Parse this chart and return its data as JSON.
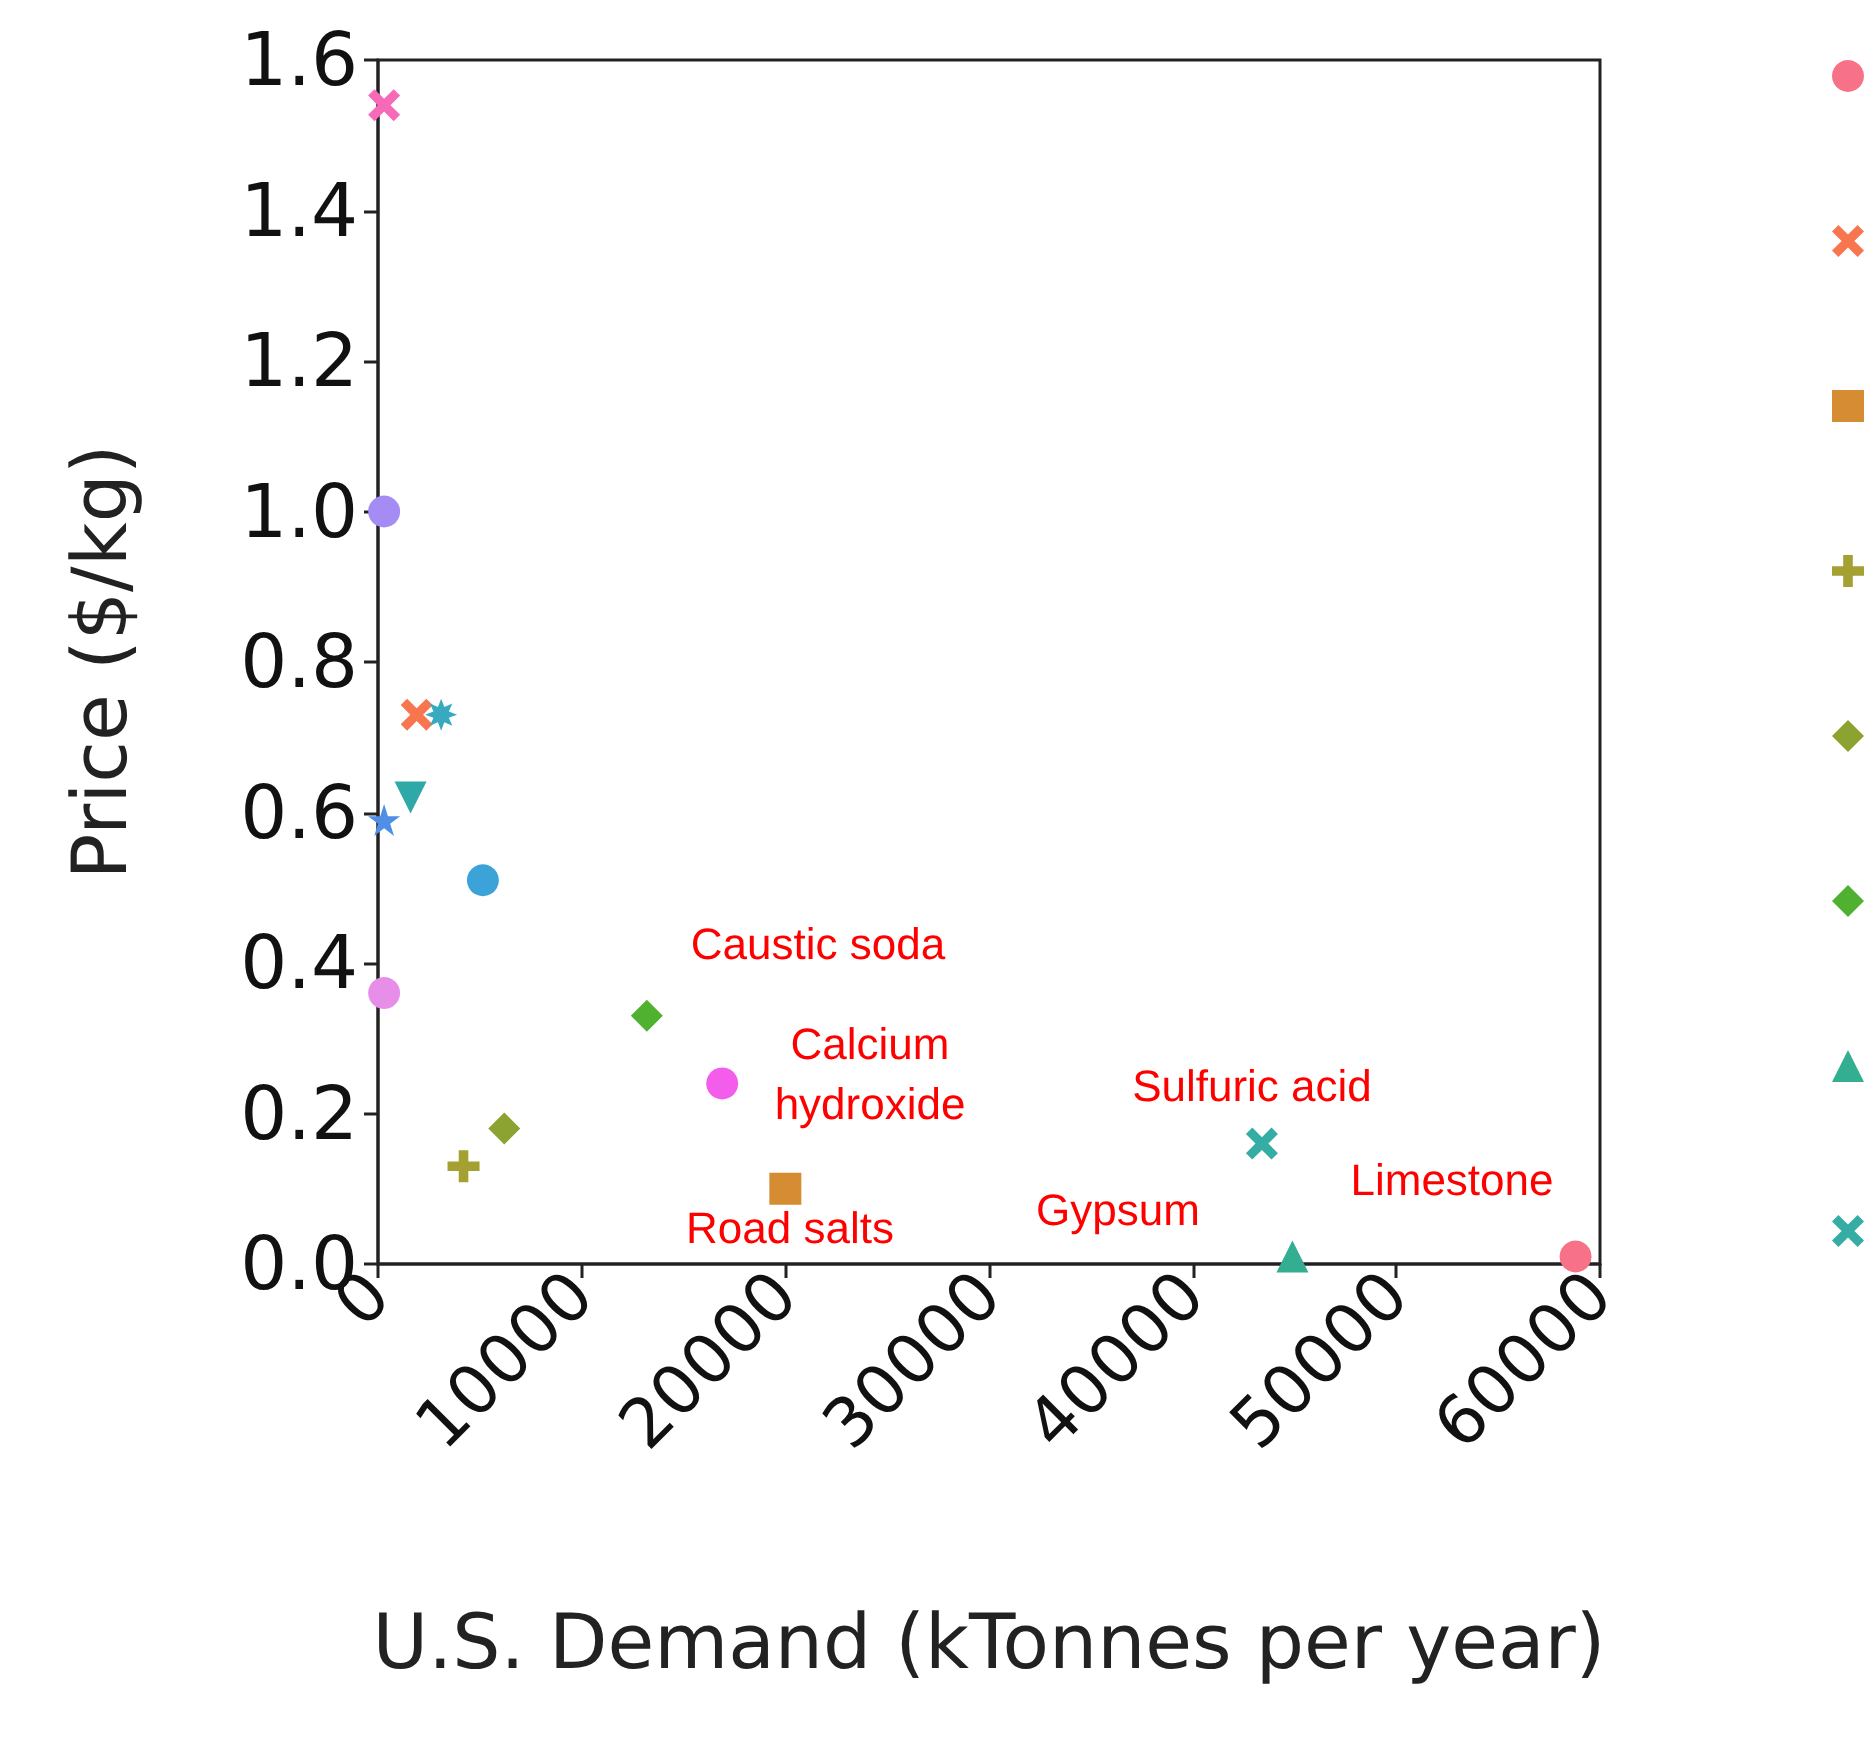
{
  "chart_data": {
    "type": "scatter",
    "xlabel": "U.S. Demand (kTonnes per year)",
    "ylabel": "Price ($/kg)",
    "xlim": [
      0,
      60000
    ],
    "xticks": [
      0,
      10000,
      20000,
      30000,
      40000,
      50000,
      60000
    ],
    "ylim": [
      0,
      1.6
    ],
    "yticks": [
      {
        "value": 0,
        "label": "0.0"
      },
      {
        "value": 0.2,
        "label": "0.2"
      },
      {
        "value": 0.4,
        "label": "0.4"
      },
      {
        "value": 0.6,
        "label": "0.6"
      },
      {
        "value": 0.8,
        "label": "0.8"
      },
      {
        "value": 1,
        "label": "1.0"
      },
      {
        "value": 1.2,
        "label": "1.2"
      },
      {
        "value": 1.4,
        "label": "1.4"
      },
      {
        "value": 1.6,
        "label": "1.6"
      }
    ],
    "grid": false,
    "series": [
      {
        "color": "#f77189",
        "marker": "circle",
        "x": [
          58800
        ],
        "values": [
          0.01
        ]
      },
      {
        "color": "#f7754f",
        "marker": "x",
        "x": [
          1900
        ],
        "values": [
          0.73
        ]
      },
      {
        "color": "#d58c32",
        "marker": "square",
        "x": [
          20000
        ],
        "values": [
          0.1
        ]
      },
      {
        "color": "#a4a031",
        "marker": "plus",
        "x": [
          4200
        ],
        "values": [
          0.13
        ]
      },
      {
        "color": "#8ca331",
        "marker": "diamond",
        "x": [
          6200
        ],
        "values": [
          0.18
        ]
      },
      {
        "color": "#50b131",
        "marker": "diamond",
        "x": [
          13200
        ],
        "values": [
          0.33
        ]
      },
      {
        "color": "#34ae91",
        "marker": "triangle",
        "x": [
          44900
        ],
        "values": [
          0.01
        ]
      },
      {
        "color": "#36ada4",
        "marker": "x",
        "x": [
          43400
        ],
        "values": [
          0.16
        ]
      },
      {
        "color": "#38aabf",
        "marker": "asterisk",
        "x": [
          3100
        ],
        "values": [
          0.73
        ]
      },
      {
        "color": "#2fa8a8",
        "marker": "triangle_down",
        "x": [
          1600
        ],
        "values": [
          0.62
        ]
      },
      {
        "color": "#3ba3d8",
        "marker": "circle",
        "x": [
          5150
        ],
        "values": [
          0.51
        ]
      },
      {
        "color": "#4f8fe6",
        "marker": "star",
        "x": [
          300
        ],
        "values": [
          0.59
        ]
      },
      {
        "color": "#a48cf4",
        "marker": "circle",
        "x": [
          300
        ],
        "values": [
          1.0
        ]
      },
      {
        "color": "#f45deb",
        "marker": "circle",
        "x": [
          16900
        ],
        "values": [
          0.24
        ]
      },
      {
        "color": "#e68ee8",
        "marker": "circle",
        "x": [
          300
        ],
        "values": [
          0.36
        ]
      },
      {
        "color": "#f66ab8",
        "marker": "x",
        "x": [
          300
        ],
        "values": [
          1.54
        ]
      }
    ],
    "annotations": [
      "Caustic soda",
      "Calcium\nhydroxide",
      "Road salts",
      "Gypsum",
      "Sulfuric acid",
      "Limestone"
    ]
  }
}
